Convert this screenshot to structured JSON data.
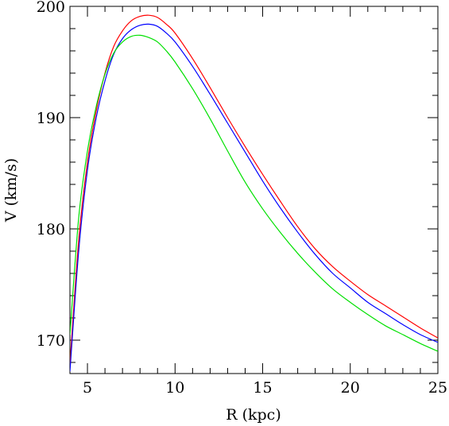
{
  "chart_data": {
    "type": "line",
    "xlabel": "R (kpc)",
    "ylabel": "V (km/s)",
    "xlim": [
      4,
      25
    ],
    "ylim": [
      167,
      200
    ],
    "x_major_ticks": [
      5,
      10,
      15,
      20,
      25
    ],
    "y_major_ticks": [
      170,
      180,
      190,
      200
    ],
    "x_tick_labels": [
      "5",
      "10",
      "15",
      "20",
      "25"
    ],
    "y_tick_labels": [
      "170",
      "180",
      "190",
      "200"
    ],
    "grid": false,
    "legend": "none",
    "series": [
      {
        "color": "#ff0000",
        "x": [
          4.0,
          4.5,
          5.0,
          5.5,
          6.0,
          6.5,
          7.0,
          7.5,
          8.0,
          8.5,
          9.0,
          9.5,
          10.0,
          11.0,
          12.0,
          13.0,
          14.0,
          15.0,
          16.0,
          17.0,
          18.0,
          19.0,
          20.0,
          21.0,
          22.0,
          23.0,
          24.0,
          25.0
        ],
        "y": [
          167.8,
          179.0,
          186.0,
          190.6,
          194.0,
          196.4,
          197.8,
          198.7,
          199.1,
          199.2,
          199.0,
          198.4,
          197.6,
          195.3,
          192.7,
          190.0,
          187.4,
          184.9,
          182.5,
          180.2,
          178.2,
          176.6,
          175.3,
          174.1,
          173.1,
          172.1,
          171.1,
          170.2
        ]
      },
      {
        "color": "#0000ff",
        "x": [
          4.0,
          4.5,
          5.0,
          5.5,
          6.0,
          6.5,
          7.0,
          7.5,
          8.0,
          8.5,
          9.0,
          9.5,
          10.0,
          11.0,
          12.0,
          13.0,
          14.0,
          15.0,
          16.0,
          17.0,
          18.0,
          19.0,
          20.0,
          21.0,
          22.0,
          23.0,
          24.0,
          25.0
        ],
        "y": [
          167.2,
          178.0,
          185.3,
          190.0,
          193.3,
          195.7,
          197.1,
          197.9,
          198.3,
          198.4,
          198.2,
          197.6,
          196.8,
          194.6,
          192.1,
          189.5,
          186.9,
          184.3,
          181.9,
          179.7,
          177.7,
          176.0,
          174.7,
          173.4,
          172.4,
          171.4,
          170.5,
          169.8
        ]
      },
      {
        "color": "#00e000",
        "x": [
          4.0,
          4.5,
          5.0,
          5.5,
          6.0,
          6.5,
          7.0,
          7.5,
          8.0,
          8.5,
          9.0,
          9.5,
          10.0,
          11.0,
          12.0,
          13.0,
          14.0,
          15.0,
          16.0,
          17.0,
          18.0,
          19.0,
          20.0,
          21.0,
          22.0,
          23.0,
          24.0,
          25.0
        ],
        "y": [
          170.5,
          181.0,
          187.0,
          191.0,
          193.9,
          195.8,
          196.8,
          197.3,
          197.4,
          197.2,
          196.8,
          196.0,
          195.0,
          192.6,
          189.9,
          187.0,
          184.2,
          181.8,
          179.7,
          177.8,
          176.1,
          174.6,
          173.4,
          172.3,
          171.3,
          170.5,
          169.7,
          169.0
        ]
      }
    ]
  }
}
